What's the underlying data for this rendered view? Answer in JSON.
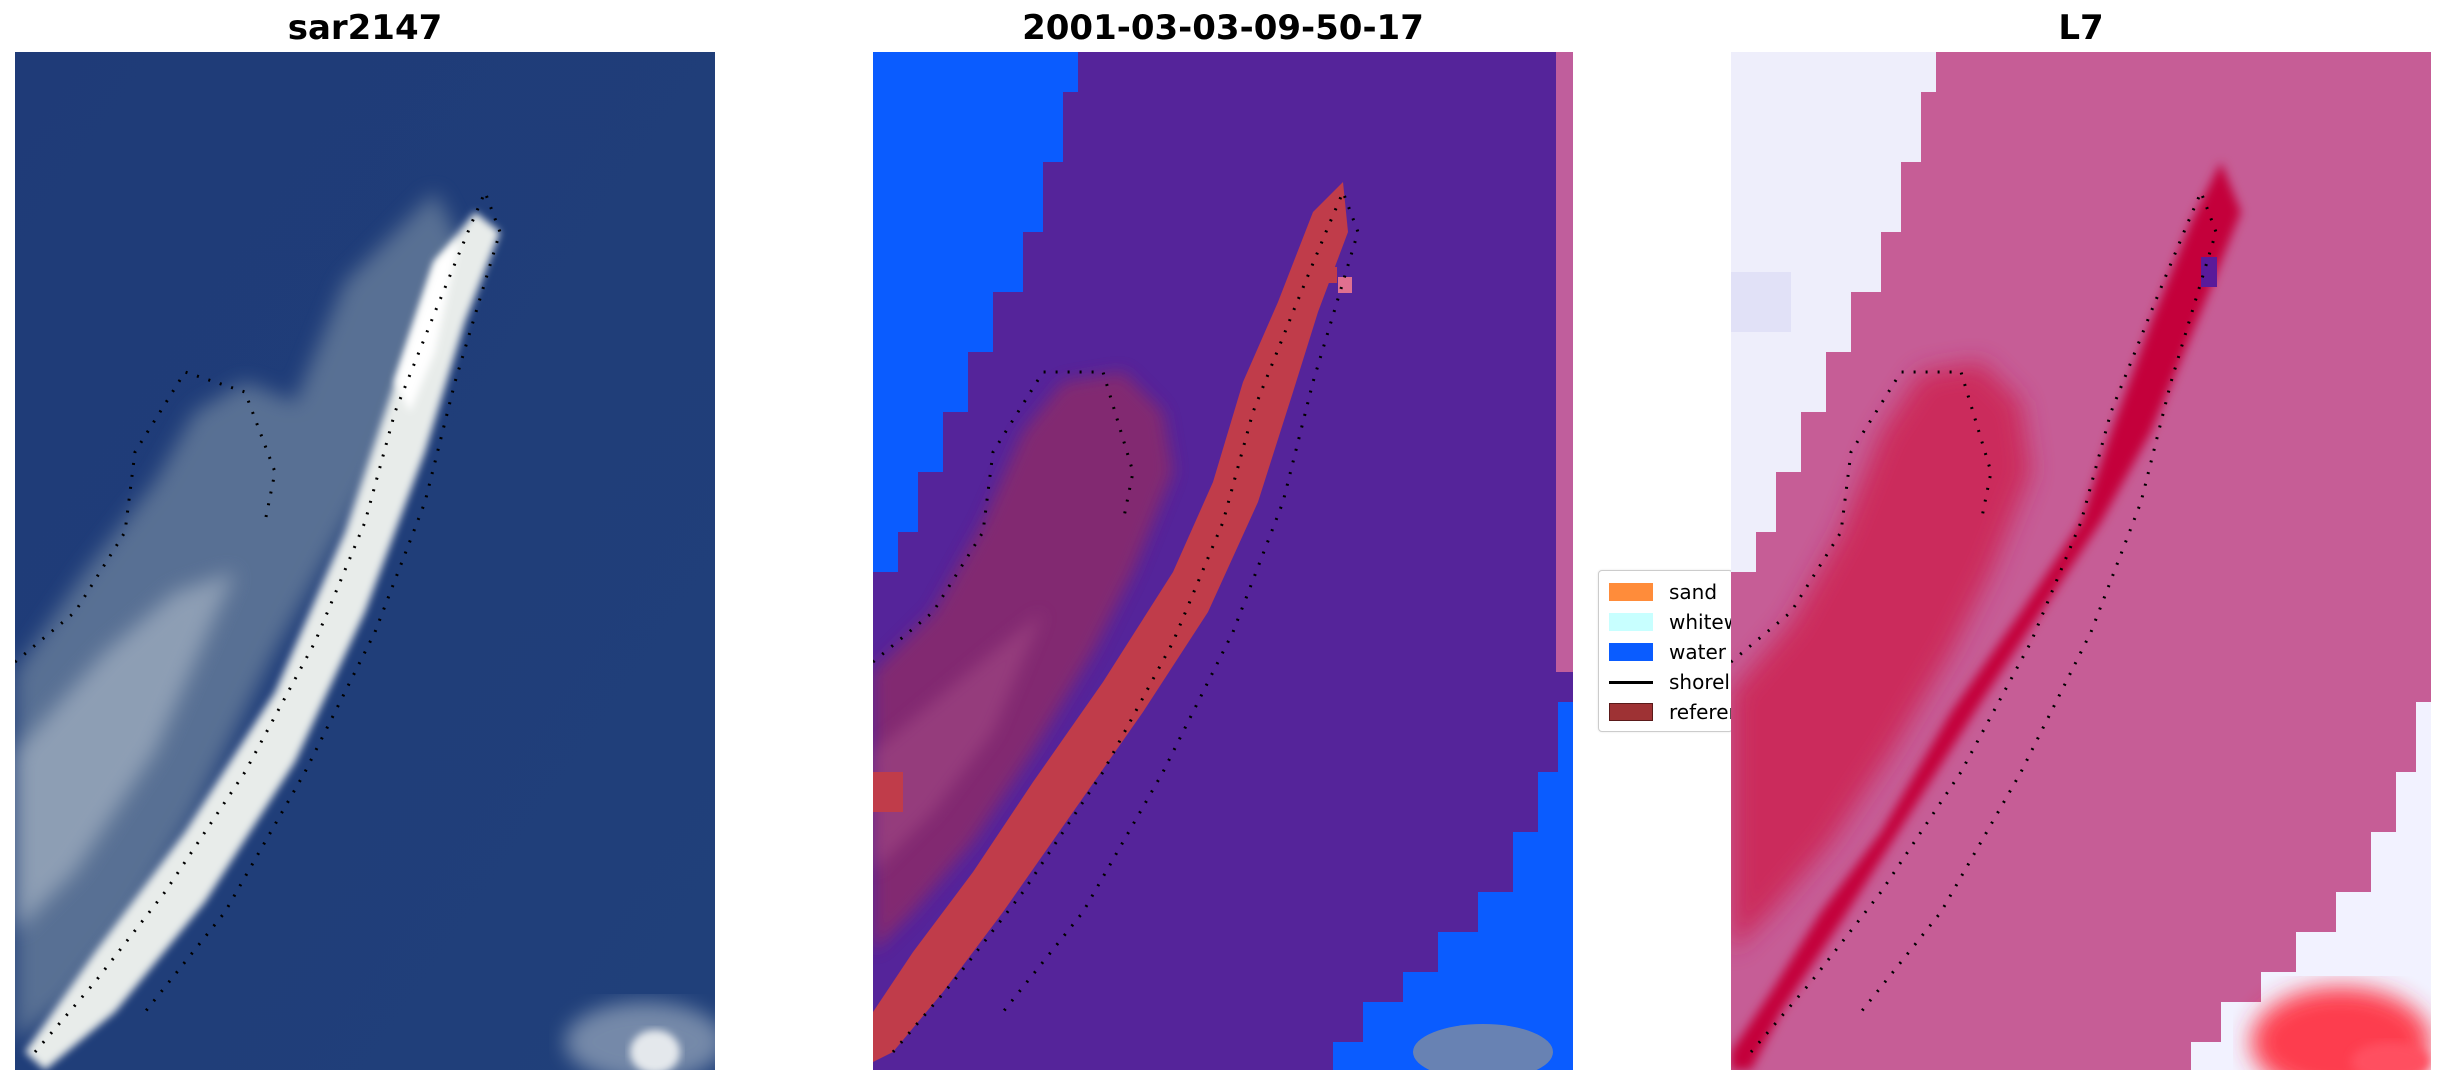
{
  "panels": [
    {
      "title": "sar2147",
      "kind": "rgb-image"
    },
    {
      "title": "2001-03-03-09-50-17",
      "kind": "classification-overlay"
    },
    {
      "title": "L7",
      "kind": "index-heatmap"
    }
  ],
  "legend": {
    "items": [
      {
        "label": "sand",
        "type": "patch",
        "color": "#ff8c3a"
      },
      {
        "label": "whitewater",
        "type": "patch",
        "color": "#c8ffff"
      },
      {
        "label": "water",
        "type": "patch",
        "color": "#0a5cff"
      },
      {
        "label": "shoreline",
        "type": "line",
        "color": "#000000"
      },
      {
        "label": "reference",
        "type": "patch",
        "color": "#9e3234"
      }
    ]
  },
  "colors": {
    "ocean_dark": "#1f3a73",
    "classification_water": "#0a5cff",
    "classification_overlay_purple": "#55249a",
    "classification_reference": "#c03c4a",
    "heatmap_land": "#c65d96",
    "heatmap_core": "#c4003a",
    "heatmap_white": "#f2f2ff"
  }
}
